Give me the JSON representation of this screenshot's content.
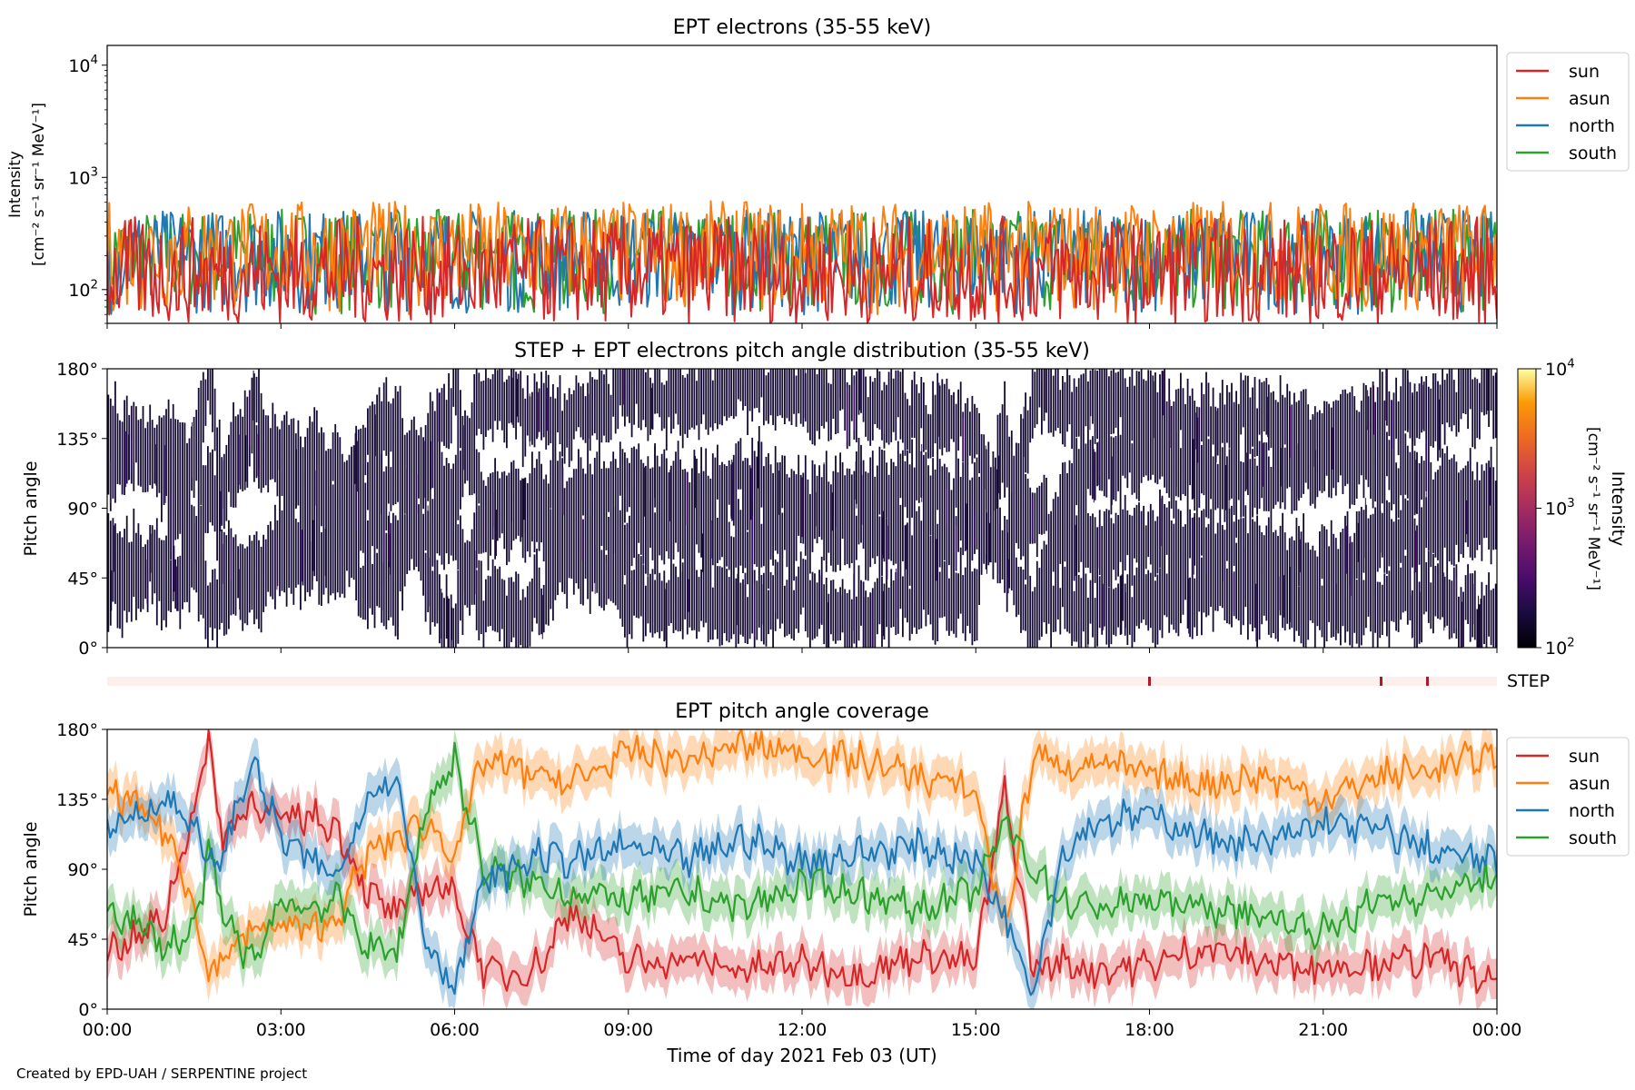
{
  "footer": {
    "credit": "Created by EPD-UAH / SERPENTINE project"
  },
  "chart_data": [
    {
      "type": "line",
      "title": "EPT electrons (35-55 keV)",
      "ylabel": "Intensity",
      "ylabel_units": "[cm⁻² s⁻¹ sr⁻¹ MeV⁻¹]",
      "yscale": "log",
      "ylim": [
        50,
        15000
      ],
      "yticks": [
        {
          "value": 100,
          "base": "10",
          "exp": "2"
        },
        {
          "value": 1000,
          "base": "10",
          "exp": "3"
        },
        {
          "value": 10000,
          "base": "10",
          "exp": "4"
        }
      ],
      "xlim": [
        "00:00",
        "24:00"
      ],
      "legend_position": "outside-right",
      "series": [
        {
          "name": "sun",
          "color": "#d62728",
          "typical_range": [
            50,
            450
          ]
        },
        {
          "name": "asun",
          "color": "#ff7f0e",
          "typical_range": [
            60,
            620
          ]
        },
        {
          "name": "north",
          "color": "#1f77b4",
          "typical_range": [
            60,
            520
          ]
        },
        {
          "name": "south",
          "color": "#2ca02c",
          "typical_range": [
            60,
            520
          ]
        }
      ]
    },
    {
      "type": "heatmap",
      "title": "STEP + EPT electrons pitch angle distribution (35-55 keV)",
      "ylabel": "Pitch angle",
      "ylim": [
        0,
        180
      ],
      "yticks": [
        "0°",
        "45°",
        "90°",
        "135°",
        "180°"
      ],
      "colorbar": {
        "label": "Intensity",
        "units": "[cm⁻² s⁻¹ sr⁻¹ MeV⁻¹]",
        "scale": "log",
        "range": [
          100,
          10000
        ],
        "ticks": [
          {
            "base": "10",
            "exp": "2"
          },
          {
            "base": "10",
            "exp": "3"
          },
          {
            "base": "10",
            "exp": "4"
          }
        ],
        "colormap": "inferno"
      }
    },
    {
      "type": "table",
      "label": "STEP",
      "marker_times_hours": [
        18.0,
        22.0,
        22.8
      ],
      "marker_color": "#b2182b",
      "background_color": "#fdf0ec"
    },
    {
      "type": "line",
      "title": "EPT pitch angle coverage",
      "ylabel": "Pitch angle",
      "xlabel": "Time of day 2021 Feb 03 (UT)",
      "ylim": [
        0,
        180
      ],
      "yticks": [
        "0°",
        "45°",
        "90°",
        "135°",
        "180°"
      ],
      "xticks": [
        "00:00",
        "03:00",
        "06:00",
        "09:00",
        "12:00",
        "15:00",
        "18:00",
        "21:00",
        "00:00"
      ],
      "legend_position": "outside-right",
      "series": [
        {
          "name": "sun",
          "color": "#d62728",
          "hours": [
            0,
            0.5,
            1,
            1.5,
            1.75,
            2,
            2.5,
            3,
            3.5,
            4,
            4.5,
            5,
            5.5,
            6,
            6.5,
            7,
            7.5,
            8,
            9,
            10,
            11,
            12,
            13,
            14,
            15,
            15.5,
            16,
            16.5,
            17,
            18,
            19,
            20,
            21,
            22,
            23,
            24
          ],
          "values": [
            38,
            45,
            60,
            130,
            170,
            110,
            135,
            120,
            125,
            115,
            75,
            60,
            80,
            75,
            25,
            22,
            30,
            65,
            30,
            32,
            25,
            30,
            22,
            35,
            30,
            140,
            25,
            30,
            25,
            28,
            40,
            30,
            28,
            30,
            32,
            15
          ]
        },
        {
          "name": "asun",
          "color": "#ff7f0e",
          "hours": [
            0,
            0.5,
            1,
            1.5,
            1.75,
            2,
            2.5,
            3,
            3.5,
            4,
            4.5,
            5,
            5.5,
            6,
            6.5,
            7,
            7.5,
            8,
            9,
            10,
            11,
            12,
            13,
            14,
            15,
            15.5,
            16,
            16.5,
            17,
            18,
            19,
            20,
            21,
            22,
            23,
            24
          ],
          "values": [
            140,
            130,
            115,
            70,
            20,
            35,
            50,
            55,
            50,
            60,
            100,
            110,
            120,
            100,
            160,
            155,
            150,
            145,
            165,
            160,
            170,
            165,
            160,
            150,
            140,
            50,
            165,
            155,
            160,
            150,
            145,
            150,
            135,
            150,
            155,
            165
          ]
        },
        {
          "name": "north",
          "color": "#1f77b4",
          "hours": [
            0,
            0.5,
            1,
            1.5,
            1.75,
            2,
            2.5,
            3,
            3.5,
            4,
            4.5,
            5,
            5.5,
            6,
            6.5,
            7,
            7.5,
            8,
            9,
            10,
            11,
            12,
            13,
            14,
            15,
            15.5,
            16,
            16.5,
            17,
            18,
            19,
            20,
            21,
            22,
            23,
            24
          ],
          "values": [
            115,
            125,
            135,
            120,
            90,
            100,
            160,
            110,
            95,
            85,
            140,
            150,
            45,
            15,
            80,
            90,
            100,
            95,
            105,
            95,
            110,
            95,
            100,
            105,
            95,
            60,
            15,
            100,
            120,
            125,
            110,
            105,
            120,
            115,
            100,
            95
          ]
        },
        {
          "name": "south",
          "color": "#2ca02c",
          "hours": [
            0,
            0.5,
            1,
            1.5,
            1.75,
            2,
            2.5,
            3,
            3.5,
            4,
            4.5,
            5,
            5.5,
            6,
            6.5,
            7,
            7.5,
            8,
            9,
            10,
            11,
            12,
            13,
            14,
            15,
            15.5,
            16,
            16.5,
            17,
            18,
            19,
            20,
            21,
            22,
            23,
            24
          ],
          "values": [
            65,
            55,
            40,
            50,
            100,
            60,
            30,
            70,
            65,
            70,
            40,
            35,
            130,
            160,
            90,
            85,
            80,
            75,
            70,
            75,
            65,
            80,
            75,
            65,
            75,
            120,
            90,
            70,
            65,
            70,
            65,
            60,
            50,
            70,
            75,
            85
          ]
        }
      ]
    }
  ]
}
